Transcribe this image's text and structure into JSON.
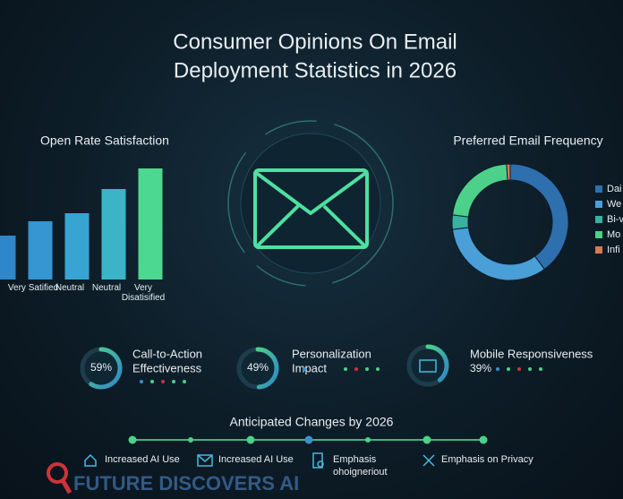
{
  "header": {
    "title_lines": [
      "Consumer Opinions On Email",
      "Deployment Statistics in 2026"
    ]
  },
  "chart_data": [
    {
      "type": "bar",
      "title": "Open Rate Satisfaction",
      "categories": [
        null,
        "Very Satified",
        "Neutral",
        "Neutral",
        "Very Disatisified"
      ],
      "values": [
        49,
        65,
        74,
        101,
        124
      ],
      "ylim": [
        0,
        130
      ],
      "colors": [
        "#2f86c8",
        "#3596d2",
        "#38a4d2",
        "#3cb4c8",
        "#4cd890"
      ]
    },
    {
      "type": "donut",
      "title": "Preferred Email Frequency",
      "categories": [
        "Dai",
        "We",
        "Bi-v",
        "Mo",
        "Infi"
      ],
      "values": [
        40,
        33,
        4,
        22,
        1
      ],
      "colors": [
        "#2e6fae",
        "#4a9fd8",
        "#3ab0a0",
        "#4cd08a",
        "#d87a50"
      ]
    }
  ],
  "metrics": [
    {
      "label_lines": [
        "Call-to-Action",
        "Effectiveness"
      ],
      "value": 59,
      "value_label": "59%"
    },
    {
      "label_lines": [
        "Personalization",
        "Impact"
      ],
      "value": 49,
      "value_label": "49%"
    },
    {
      "label_lines": [
        "Mobile Responsiveness"
      ],
      "value": 39,
      "value_label": "39%"
    }
  ],
  "timeline": {
    "title": "Anticipated Changes by 2026",
    "items": [
      {
        "lines": [
          "Increased AI Use"
        ]
      },
      {
        "lines": [
          "Increased AI Use"
        ]
      },
      {
        "lines": [
          "Emphasis",
          "ohoigneriout"
        ]
      },
      {
        "lines": [
          "Emphasis on Privacy"
        ]
      }
    ]
  },
  "watermark": "FUTURE DISCOVERS AI"
}
